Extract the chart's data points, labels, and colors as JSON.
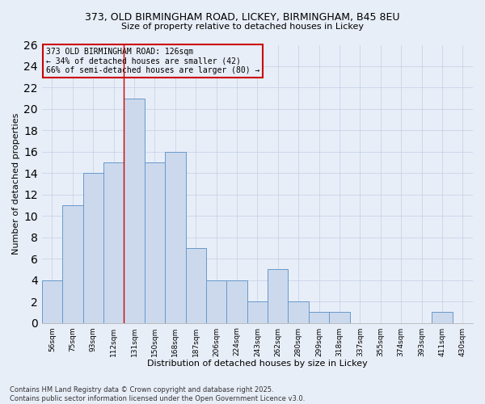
{
  "title_line1": "373, OLD BIRMINGHAM ROAD, LICKEY, BIRMINGHAM, B45 8EU",
  "title_line2": "Size of property relative to detached houses in Lickey",
  "xlabel": "Distribution of detached houses by size in Lickey",
  "ylabel": "Number of detached properties",
  "bar_labels": [
    "56sqm",
    "75sqm",
    "93sqm",
    "112sqm",
    "131sqm",
    "150sqm",
    "168sqm",
    "187sqm",
    "206sqm",
    "224sqm",
    "243sqm",
    "262sqm",
    "280sqm",
    "299sqm",
    "318sqm",
    "337sqm",
    "355sqm",
    "374sqm",
    "393sqm",
    "411sqm",
    "430sqm"
  ],
  "bar_values": [
    4,
    11,
    14,
    15,
    21,
    15,
    16,
    7,
    4,
    4,
    2,
    5,
    2,
    1,
    1,
    0,
    0,
    0,
    0,
    1,
    0
  ],
  "bar_color": "#ccd9ed",
  "bar_edge_color": "#6699cc",
  "grid_color": "#c8d4e8",
  "bg_color": "#e8eef8",
  "vline_x": 3.5,
  "vline_color": "#cc0000",
  "annotation_text": "373 OLD BIRMINGHAM ROAD: 126sqm\n← 34% of detached houses are smaller (42)\n66% of semi-detached houses are larger (80) →",
  "annotation_box_color": "#cc0000",
  "footer_line1": "Contains HM Land Registry data © Crown copyright and database right 2025.",
  "footer_line2": "Contains public sector information licensed under the Open Government Licence v3.0.",
  "ylim": [
    0,
    26
  ],
  "yticks": [
    0,
    2,
    4,
    6,
    8,
    10,
    12,
    14,
    16,
    18,
    20,
    22,
    24,
    26
  ]
}
